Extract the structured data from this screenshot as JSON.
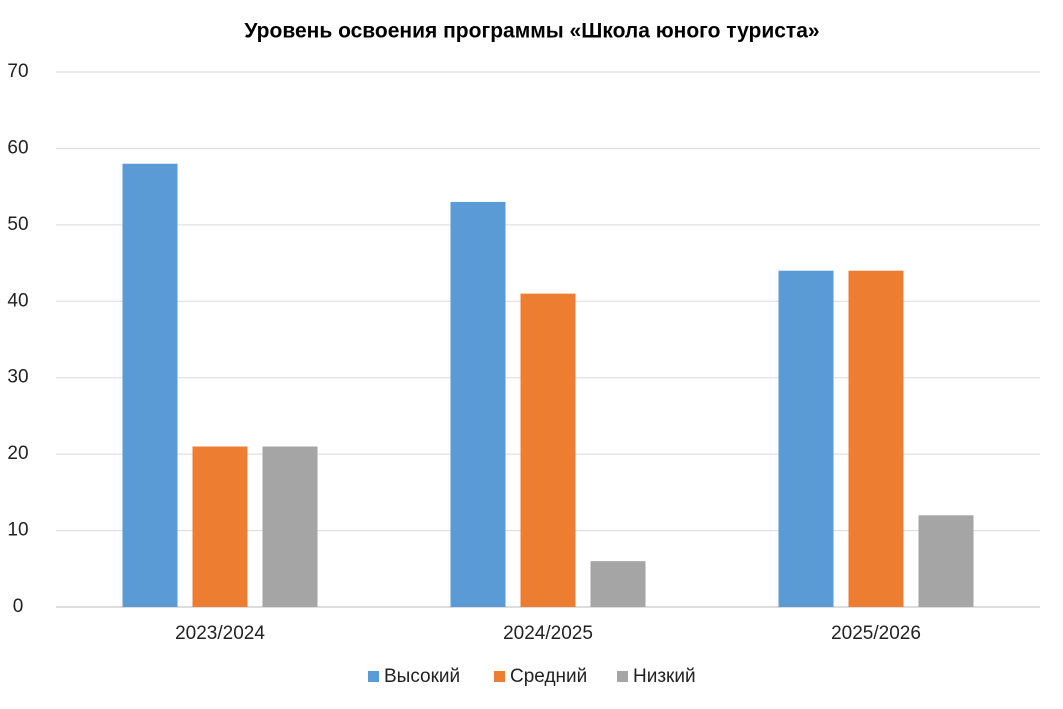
{
  "chart_data": {
    "type": "bar",
    "title": "Уровень освоения программы «Школа юного туриста»",
    "categories": [
      "2023/2024",
      "2024/2025",
      "2025/2026"
    ],
    "series": [
      {
        "name": "Высокий",
        "color": "#5b9bd5",
        "values": [
          58,
          53,
          44
        ]
      },
      {
        "name": "Средний",
        "color": "#ed7d31",
        "values": [
          21,
          41,
          44
        ]
      },
      {
        "name": "Низкий",
        "color": "#a5a5a5",
        "values": [
          21,
          6,
          12
        ]
      }
    ],
    "ylim": [
      0,
      70
    ],
    "yticks": [
      0,
      10,
      20,
      30,
      40,
      50,
      60,
      70
    ],
    "grid": true,
    "legend": "bottom"
  }
}
